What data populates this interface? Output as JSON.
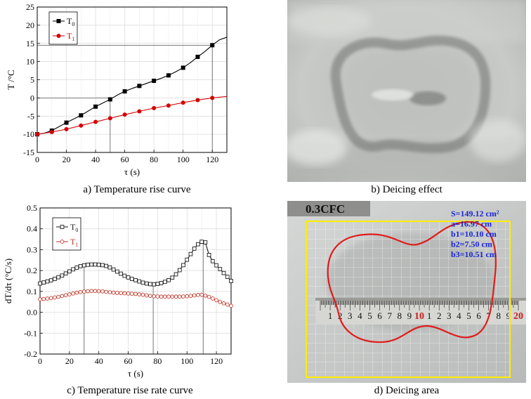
{
  "captions": {
    "a": "a) Temperature rise curve",
    "b": "b) Deicing effect",
    "c": "c) Temperature rise rate curve",
    "d": "d) Deicing area"
  },
  "chart_data": [
    {
      "id": "a",
      "type": "line",
      "title": "",
      "xlabel": "τ (s)",
      "ylabel": "T /°C",
      "xlim": [
        0,
        130
      ],
      "ylim": [
        -15,
        25
      ],
      "xticks": [
        0,
        20,
        40,
        60,
        80,
        100,
        120
      ],
      "yticks": [
        -15,
        -10,
        -5,
        0,
        5,
        10,
        15,
        20,
        25
      ],
      "legend": "top-left",
      "series": [
        {
          "name": "T0",
          "sub": "0",
          "color": "#000000",
          "marker": "square-filled",
          "line_x": [
            0,
            5,
            10,
            15,
            20,
            25,
            30,
            35,
            40,
            45,
            50,
            55,
            60,
            65,
            70,
            75,
            80,
            85,
            90,
            95,
            100,
            105,
            110,
            115,
            120,
            125,
            130
          ],
          "line_y": [
            -10,
            -9.7,
            -9,
            -7.9,
            -6.8,
            -5.8,
            -4.8,
            -3.6,
            -2.4,
            -1.4,
            -0.4,
            0.8,
            1.8,
            2.6,
            3.3,
            4,
            4.7,
            5.4,
            6.2,
            7.2,
            8.3,
            9.7,
            11.3,
            12.8,
            14.5,
            16,
            16.7
          ],
          "x": [
            0,
            10,
            20,
            30,
            40,
            50,
            60,
            70,
            80,
            90,
            100,
            110,
            120
          ],
          "y": [
            -10,
            -9,
            -6.8,
            -4.8,
            -2.4,
            -0.4,
            1.8,
            3.3,
            4.7,
            6.2,
            8.3,
            11.3,
            14.5
          ]
        },
        {
          "name": "T1",
          "sub": "1",
          "color": "#d40000",
          "marker": "circle-filled",
          "line_x": [
            0,
            10,
            20,
            30,
            40,
            50,
            60,
            70,
            80,
            90,
            100,
            110,
            120,
            130
          ],
          "line_y": [
            -10,
            -9.4,
            -8.6,
            -7.6,
            -6.6,
            -5.6,
            -4.6,
            -3.7,
            -2.8,
            -2.1,
            -1.3,
            -0.6,
            0,
            0.4
          ],
          "x": [
            0,
            10,
            20,
            30,
            40,
            50,
            60,
            70,
            80,
            90,
            100,
            110,
            120
          ],
          "y": [
            -10,
            -9.4,
            -8.6,
            -7.6,
            -6.6,
            -5.6,
            -4.6,
            -3.7,
            -2.8,
            -2.1,
            -1.3,
            -0.6,
            0
          ]
        }
      ],
      "reference_lines": [
        {
          "orientation": "horizontal",
          "y": 0,
          "x_to": 50
        },
        {
          "orientation": "horizontal",
          "y": 14.5,
          "x_to": 120
        },
        {
          "orientation": "vertical",
          "x": 50,
          "y_to": -0.4
        },
        {
          "orientation": "vertical",
          "x": 120,
          "y_to": 14.5
        }
      ]
    },
    {
      "id": "c",
      "type": "line",
      "title": "",
      "xlabel": "τ (s)",
      "ylabel": "dT/dτ  (°C/s)",
      "xlim": [
        0,
        130
      ],
      "ylim": [
        -0.2,
        0.5
      ],
      "xticks": [
        0,
        20,
        40,
        60,
        80,
        100,
        120
      ],
      "yticks": [
        -0.2,
        -0.1,
        0.0,
        0.1,
        0.2,
        0.3,
        0.4,
        0.5
      ],
      "legend": "top-left",
      "series": [
        {
          "name": "T0",
          "sub": "0",
          "color": "#1a1a1a",
          "marker": "square-open",
          "x": [
            0,
            2.5,
            5,
            7.5,
            10,
            12.5,
            15,
            17.5,
            20,
            22.5,
            25,
            27.5,
            30,
            32.5,
            35,
            37.5,
            40,
            42.5,
            45,
            47.5,
            50,
            52.5,
            55,
            57.5,
            60,
            62.5,
            65,
            67.5,
            70,
            72.5,
            75,
            77.5,
            80,
            82.5,
            85,
            87.5,
            90,
            92.5,
            95,
            97.5,
            100,
            102.5,
            105,
            107.5,
            110,
            112.5,
            115,
            117.5,
            120,
            122.5,
            125,
            127.5,
            130
          ],
          "y": [
            0.138,
            0.143,
            0.148,
            0.153,
            0.16,
            0.168,
            0.176,
            0.186,
            0.196,
            0.206,
            0.214,
            0.221,
            0.225,
            0.228,
            0.229,
            0.229,
            0.228,
            0.226,
            0.222,
            0.215,
            0.205,
            0.195,
            0.185,
            0.175,
            0.167,
            0.16,
            0.154,
            0.148,
            0.142,
            0.138,
            0.135,
            0.134,
            0.136,
            0.14,
            0.146,
            0.154,
            0.166,
            0.182,
            0.202,
            0.226,
            0.252,
            0.279,
            0.305,
            0.326,
            0.338,
            0.335,
            0.275,
            0.245,
            0.225,
            0.207,
            0.188,
            0.17,
            0.15
          ]
        },
        {
          "name": "T1",
          "sub": "1",
          "color": "#c0392b",
          "marker": "circle-open",
          "x": [
            0,
            2.5,
            5,
            7.5,
            10,
            12.5,
            15,
            17.5,
            20,
            22.5,
            25,
            27.5,
            30,
            32.5,
            35,
            37.5,
            40,
            42.5,
            45,
            47.5,
            50,
            52.5,
            55,
            57.5,
            60,
            62.5,
            65,
            67.5,
            70,
            72.5,
            75,
            77.5,
            80,
            82.5,
            85,
            87.5,
            90,
            92.5,
            95,
            97.5,
            100,
            102.5,
            105,
            107.5,
            110,
            112.5,
            115,
            117.5,
            120,
            122.5,
            125,
            127.5,
            130
          ],
          "y": [
            0.062,
            0.064,
            0.066,
            0.068,
            0.071,
            0.074,
            0.078,
            0.082,
            0.086,
            0.09,
            0.094,
            0.097,
            0.099,
            0.101,
            0.102,
            0.102,
            0.101,
            0.1,
            0.098,
            0.096,
            0.094,
            0.093,
            0.092,
            0.091,
            0.09,
            0.089,
            0.088,
            0.086,
            0.084,
            0.081,
            0.079,
            0.077,
            0.076,
            0.075,
            0.075,
            0.075,
            0.075,
            0.075,
            0.075,
            0.076,
            0.077,
            0.079,
            0.081,
            0.083,
            0.084,
            0.08,
            0.074,
            0.066,
            0.058,
            0.05,
            0.043,
            0.037,
            0.031
          ]
        }
      ],
      "reference_lines": [
        {
          "orientation": "vertical",
          "x": 30,
          "y_to": 0.225
        },
        {
          "orientation": "vertical",
          "x": 77,
          "y_to": 0.134
        },
        {
          "orientation": "vertical",
          "x": 111,
          "y_to": 0.338
        }
      ]
    }
  ],
  "panel_d": {
    "badge": "0.3CFC",
    "stats": [
      "S=149.12 cm²",
      "a=16.97 cm",
      "b1=10.10 cm",
      "b2=7.50 cm",
      "b3=10.51 cm"
    ],
    "ruler_labels": [
      "1",
      "2",
      "3",
      "4",
      "5",
      "6",
      "7",
      "8",
      "9",
      "10",
      "1",
      "2",
      "3",
      "4",
      "5",
      "6",
      "7",
      "8",
      "9",
      "20"
    ],
    "outline_color": "#e01b1b",
    "frame_color": "#ffee00",
    "stats_color": "#1a24d6"
  },
  "colors": {
    "ice_light": "#d9dbd9",
    "ice_dark": "#8d908e"
  }
}
